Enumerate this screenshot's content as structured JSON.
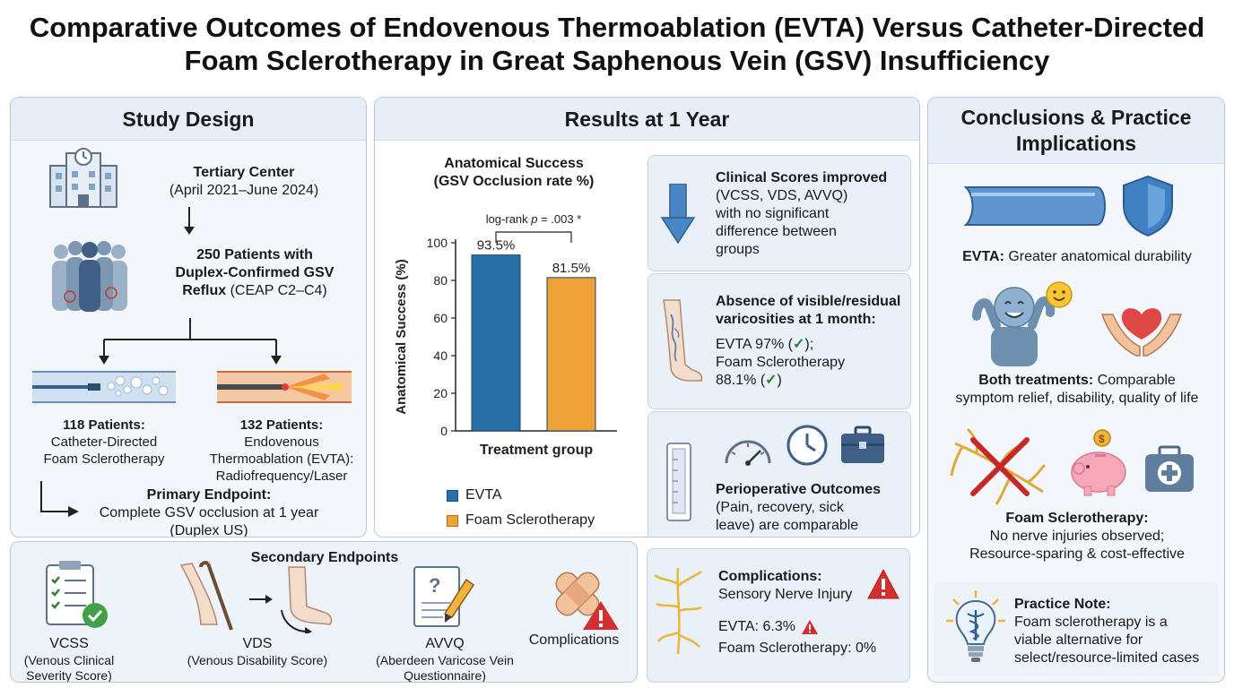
{
  "title_line1": "Comparative Outcomes of Endovenous Thermoablation (EVTA) Versus Catheter-Directed",
  "title_line2": "Foam Sclerotherapy in Great Saphenous Vein (GSV) Insufficiency",
  "study_design": {
    "heading": "Study Design",
    "center_title": "Tertiary Center",
    "center_dates": "(April 2021–June 2024)",
    "patients_line1": "250 Patients with",
    "patients_line2": "Duplex-Confirmed GSV",
    "patients_line3_bold": "Reflux",
    "patients_line3_rest": " (CEAP C2–C4)",
    "foam_count": "118 Patients:",
    "foam_line1": "Catheter-Directed",
    "foam_line2": "Foam Sclerotherapy",
    "evta_count": "132 Patients:",
    "evta_line1": "Endovenous",
    "evta_line2": "Thermoablation (EVTA):",
    "evta_line3": "Radiofrequency/Laser",
    "endpoint_title": "Primary Endpoint:",
    "endpoint_line1": "Complete GSV occlusion at 1 year",
    "endpoint_line2": "(Duplex US)"
  },
  "secondary": {
    "heading": "Secondary Endpoints",
    "items": [
      {
        "name": "VCSS",
        "desc1": "(Venous Clinical",
        "desc2": "Severity Score)"
      },
      {
        "name": "VDS",
        "desc1": "(Venous Disability Score)",
        "desc2": ""
      },
      {
        "name": "AVVQ",
        "desc1": "(Aberdeen Varicose Vein",
        "desc2": "Questionnaire)"
      },
      {
        "name": "Complications",
        "desc1": "",
        "desc2": ""
      }
    ]
  },
  "results": {
    "heading": "Results at 1 Year",
    "scores_title1": "Clinical Scores improved",
    "scores_lines": [
      "(VCSS, VDS, AVVQ)",
      "with no significant",
      "difference between",
      "groups"
    ],
    "varic_title1": "Absence of visible/residual",
    "varic_title2": "varicosities at 1 month:",
    "varic_line1": "EVTA 97% (",
    "varic_line1_end": ");",
    "varic_line2": "Foam Sclerotherapy",
    "varic_line3": "88.1% (",
    "varic_line3_end": ")",
    "periop_title": "Perioperative Outcomes",
    "periop_lines": [
      "(Pain, recovery, sick",
      "leave) are comparable"
    ],
    "comp_title": "Complications:",
    "comp_line": "Sensory Nerve Injury",
    "comp_evta": "EVTA: 6.3%",
    "comp_foam": "Foam Sclerotherapy: 0%"
  },
  "chart_data": {
    "type": "bar",
    "title": "Anatomical Success",
    "subtitle": "(GSV Occlusion rate %)",
    "categories": [
      "EVTA",
      "Foam Sclerotherapy"
    ],
    "values": [
      93.5,
      81.5
    ],
    "value_labels": [
      "93.5%",
      "81.5%"
    ],
    "xlabel": "Treatment group",
    "ylabel": "Anatomical Success (%)",
    "ylim": [
      0,
      100
    ],
    "yticks": [
      "0",
      "20",
      "40",
      "60",
      "80",
      "100"
    ],
    "annotation_prefix": "log-rank ",
    "annotation_p": "p",
    "annotation_suffix": " = .003 *",
    "colors": [
      "#2a6fa5",
      "#f0a23a"
    ],
    "legend": [
      "EVTA",
      "Foam Sclerotherapy"
    ],
    "legend_position": "bottom-left"
  },
  "conclusions": {
    "heading1": "Conclusions & Practice",
    "heading2": "Implications",
    "evta_bold": "EVTA:",
    "evta_text": " Greater anatomical durability",
    "both_bold": "Both treatments:",
    "both_text1": " Comparable",
    "both_text2": "symptom relief, disability, quality of life",
    "foam_title": "Foam Sclerotherapy:",
    "foam_line1": "No nerve injuries observed;",
    "foam_line2": "Resource-sparing & cost-effective",
    "note_title": "Practice Note:",
    "note_lines": [
      "Foam sclerotherapy is a",
      "viable alternative for",
      "select/resource-limited cases"
    ]
  }
}
